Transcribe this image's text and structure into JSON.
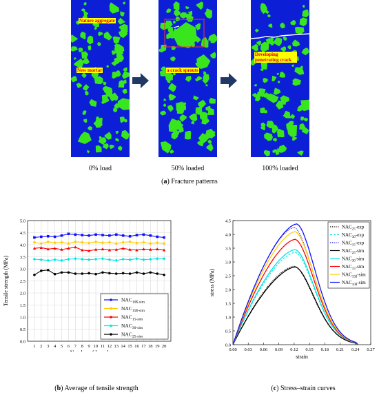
{
  "figure_a": {
    "panels": [
      {
        "caption": "0% load",
        "labels": [
          "Nature aggregate",
          "New mortar"
        ]
      },
      {
        "caption": "50% loaded",
        "labels": [
          "a crack sprouts"
        ]
      },
      {
        "caption": "100% loaded",
        "labels": [
          "Developing penetrating crack"
        ]
      }
    ],
    "caption_letter": "a",
    "caption_text": "Fracture patterns",
    "colors": {
      "mortar": "#0c1fd6",
      "aggregate": "#39e61e",
      "label_bg": "#ffff00",
      "label_text": "#e00000",
      "arrow": "#1f3864"
    }
  },
  "figure_b": {
    "caption_letter": "b",
    "caption_text": "Average of tensile strength"
  },
  "figure_c": {
    "caption_letter": "c",
    "caption_text": "Stress–strain curves"
  },
  "chart_data": [
    {
      "type": "line",
      "xlabel": "Number of launches",
      "ylabel": "Tensile strength (MPa)",
      "xlim": [
        0,
        21
      ],
      "ylim": [
        0,
        5.0
      ],
      "x_ticks": [
        1,
        2,
        3,
        4,
        5,
        6,
        7,
        8,
        9,
        10,
        11,
        12,
        13,
        14,
        15,
        16,
        17,
        18,
        19,
        20
      ],
      "y_ticks": [
        "0.0",
        "0.5",
        "1.0",
        "1.5",
        "2.0",
        "2.5",
        "3.0",
        "3.5",
        "4.0",
        "4.5",
        "5.0"
      ],
      "grid": true,
      "legend_position": "bottom-right",
      "x": [
        1,
        2,
        3,
        4,
        5,
        6,
        7,
        8,
        9,
        10,
        11,
        12,
        13,
        14,
        15,
        16,
        17,
        18,
        19,
        20
      ],
      "series": [
        {
          "name": "NAC",
          "sub": "10ß-sim",
          "color": "#1010ff",
          "marker": "square",
          "values": [
            4.3,
            4.33,
            4.35,
            4.33,
            4.38,
            4.45,
            4.42,
            4.4,
            4.38,
            4.42,
            4.4,
            4.38,
            4.42,
            4.38,
            4.35,
            4.4,
            4.42,
            4.38,
            4.33,
            4.3
          ]
        },
        {
          "name": "NAC",
          "sub": "15ß-sim",
          "color": "#ffcc00",
          "marker": "diamond",
          "values": [
            4.1,
            4.05,
            4.12,
            4.08,
            4.1,
            4.05,
            4.12,
            4.1,
            4.07,
            4.12,
            4.08,
            4.1,
            4.05,
            4.1,
            4.12,
            4.07,
            4.1,
            4.05,
            4.08,
            4.05
          ]
        },
        {
          "name": "NAC",
          "sub": "15-sim",
          "color": "#ff0000",
          "marker": "triangle",
          "values": [
            3.85,
            3.88,
            3.82,
            3.85,
            3.8,
            3.85,
            3.9,
            3.78,
            3.75,
            3.8,
            3.82,
            3.78,
            3.8,
            3.85,
            3.8,
            3.78,
            3.82,
            3.8,
            3.82,
            3.78
          ]
        },
        {
          "name": "NAC",
          "sub": "30-sim",
          "color": "#00e5e5",
          "marker": "diamond",
          "values": [
            3.4,
            3.38,
            3.35,
            3.38,
            3.35,
            3.4,
            3.42,
            3.4,
            3.38,
            3.4,
            3.42,
            3.38,
            3.35,
            3.4,
            3.38,
            3.42,
            3.38,
            3.4,
            3.42,
            3.42
          ]
        },
        {
          "name": "NAC",
          "sub": "25-sim",
          "color": "#000000",
          "marker": "circle",
          "values": [
            2.75,
            2.92,
            2.95,
            2.78,
            2.85,
            2.85,
            2.8,
            2.8,
            2.82,
            2.78,
            2.85,
            2.82,
            2.8,
            2.82,
            2.8,
            2.85,
            2.8,
            2.85,
            2.8,
            2.75
          ]
        }
      ]
    },
    {
      "type": "line",
      "xlabel": "strain",
      "ylabel": "stress (MPa)",
      "xlim": [
        0,
        0.27
      ],
      "ylim": [
        0,
        4.5
      ],
      "x_ticks": [
        "0.00",
        "0.03",
        "0.06",
        "0.09",
        "0.12",
        "0.15",
        "0.18",
        "0.21",
        "0.24",
        "0.27"
      ],
      "y_ticks": [
        "0.0",
        "0.5",
        "1.0",
        "1.5",
        "2.0",
        "2.5",
        "3.0",
        "3.5",
        "4.0",
        "4.5"
      ],
      "grid": false,
      "legend_position": "top-right",
      "series": [
        {
          "name": "NAC",
          "sub": "25",
          "suffix": "-exp",
          "color": "#000000",
          "dash": "dot",
          "peak": 2.85,
          "peak_x": 0.12
        },
        {
          "name": "NAC",
          "sub": "30",
          "suffix": "-exp",
          "color": "#00e5e5",
          "dash": "dash",
          "peak": 3.35,
          "peak_x": 0.122
        },
        {
          "name": "NAC",
          "sub": "15",
          "suffix": "-exp",
          "color": "#1010ff",
          "dash": "dot",
          "peak": 4.25,
          "peak_x": 0.12
        },
        {
          "name": "NAC",
          "sub": "25",
          "suffix": "-sim",
          "color": "#000000",
          "dash": "solid",
          "peak": 2.82,
          "peak_x": 0.122
        },
        {
          "name": "NAC",
          "sub": "30",
          "suffix": "-sim",
          "color": "#00e5e5",
          "dash": "solid",
          "peak": 3.45,
          "peak_x": 0.122
        },
        {
          "name": "NAC",
          "sub": "15",
          "suffix": "-sim",
          "color": "#ff0000",
          "dash": "solid",
          "peak": 3.82,
          "peak_x": 0.122
        },
        {
          "name": "NAC",
          "sub": "15ß",
          "suffix": "-sim",
          "color": "#ffcc00",
          "dash": "solid",
          "peak": 4.1,
          "peak_x": 0.122
        },
        {
          "name": "NAC",
          "sub": "10ß",
          "suffix": "-sim",
          "color": "#1010ff",
          "dash": "solid",
          "peak": 4.38,
          "peak_x": 0.125
        }
      ]
    }
  ]
}
